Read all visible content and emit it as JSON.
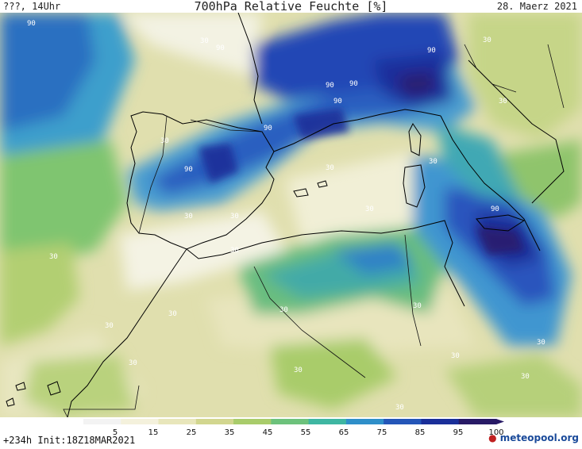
{
  "header": {
    "left": "???, 14Uhr",
    "title": "700hPa Relative Feuchte [%]",
    "date": "28. Maerz 2021"
  },
  "footer": {
    "run": "+234h Init:18Z18MAR2021",
    "brand": "meteopool",
    "brand_tld": ".org"
  },
  "legend": {
    "ticks": [
      "5",
      "15",
      "25",
      "35",
      "45",
      "55",
      "65",
      "75",
      "85",
      "95",
      "100"
    ],
    "colors": [
      "#f3f3f3",
      "#f4f1dc",
      "#e8e6bb",
      "#d2d68f",
      "#a9cc6b",
      "#6dc27c",
      "#3fb6a2",
      "#2f8fc9",
      "#2456b8",
      "#1a2f99",
      "#281a66"
    ]
  },
  "map_labels": [
    "90",
    "30",
    "90",
    "90",
    "90",
    "90",
    "90",
    "30",
    "90",
    "90",
    "30",
    "30",
    "30",
    "30",
    "30",
    "90",
    "30",
    "30",
    "30",
    "30",
    "30",
    "30",
    "30",
    "30",
    "30",
    "30",
    "30",
    "30",
    "30",
    "30"
  ]
}
